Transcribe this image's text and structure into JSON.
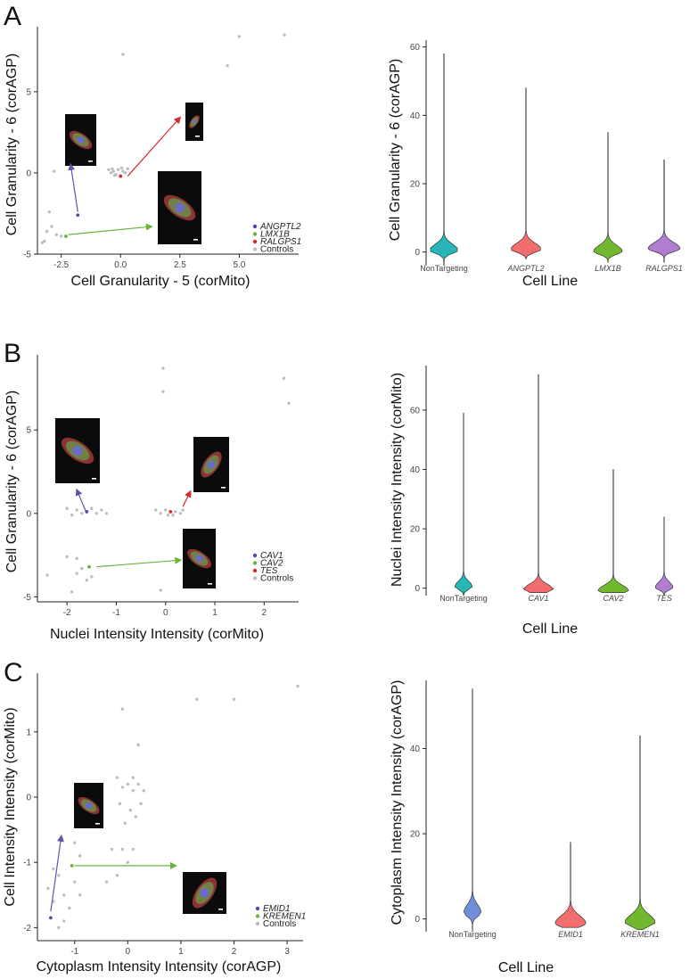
{
  "chart_data": [
    {
      "panel": "A",
      "type": "scatter",
      "xlabel": "Cell Granularity - 5 (corMito)",
      "ylabel": "Cell Granularity - 6 (corAGP)",
      "xlim": [
        -3.5,
        7.5
      ],
      "ylim": [
        -5,
        9
      ],
      "xticks": [
        -2.5,
        0,
        2.5,
        5
      ],
      "xtick_labels": [
        "-2.5",
        "0.0",
        "2.5",
        "5.0"
      ],
      "yticks": [
        -5,
        0,
        5
      ],
      "ytick_labels": [
        "-5",
        "0",
        "5"
      ],
      "legend": [
        {
          "label": "ANGPTL2",
          "color": "#4b4ba8"
        },
        {
          "label": "LMX1B",
          "color": "#6cb33e"
        },
        {
          "label": "RALGPS1",
          "color": "#d22b2b"
        },
        {
          "label": "Controls",
          "color": "#bdbdbd"
        }
      ],
      "points": [
        {
          "x": -1.8,
          "y": -2.6,
          "g": 0
        },
        {
          "x": -2.3,
          "y": -3.9,
          "g": 1
        },
        {
          "x": 0.0,
          "y": -0.2,
          "g": 2
        },
        {
          "x": 0.1,
          "y": 7.3,
          "g": 3
        },
        {
          "x": 6.9,
          "y": 8.5,
          "g": 3
        },
        {
          "x": 5.0,
          "y": 8.4,
          "g": 3
        },
        {
          "x": 4.5,
          "y": 6.6,
          "g": 3
        },
        {
          "x": -2.8,
          "y": 0.1,
          "g": 3
        },
        {
          "x": -3.1,
          "y": -3.6,
          "g": 3
        },
        {
          "x": -3.2,
          "y": -4.2,
          "g": 3
        },
        {
          "x": -3.3,
          "y": -4.3,
          "g": 3
        },
        {
          "x": -2.7,
          "y": -3.8,
          "g": 3
        },
        {
          "x": -2.5,
          "y": -3.9,
          "g": 3
        },
        {
          "x": -2.9,
          "y": -3.3,
          "g": 3
        },
        {
          "x": -3.0,
          "y": -2.4,
          "g": 3
        },
        {
          "x": -0.5,
          "y": 0.2,
          "g": 3
        },
        {
          "x": -0.4,
          "y": 0.0,
          "g": 3
        },
        {
          "x": -0.3,
          "y": 0.1,
          "g": 3
        },
        {
          "x": -0.2,
          "y": -0.1,
          "g": 3
        },
        {
          "x": -0.1,
          "y": 0.2,
          "g": 3
        },
        {
          "x": 0.1,
          "y": 0.1,
          "g": 3
        },
        {
          "x": 0.2,
          "y": 0.0,
          "g": 3
        },
        {
          "x": -0.35,
          "y": 0.25,
          "g": 3
        },
        {
          "x": 0.3,
          "y": 0.25,
          "g": 3
        },
        {
          "x": -0.25,
          "y": -0.15,
          "g": 3
        },
        {
          "x": 0.05,
          "y": 0.3,
          "g": 3
        }
      ],
      "arrows": [
        {
          "from": [
            -1.8,
            -2.4
          ],
          "to": [
            -2.1,
            0.5
          ],
          "color": "#5b57a8"
        },
        {
          "from": [
            0.3,
            -0.2
          ],
          "to": [
            2.5,
            3.4
          ],
          "color": "#d22b2b"
        },
        {
          "from": [
            -2.2,
            -3.8
          ],
          "to": [
            1.3,
            -3.3
          ],
          "color": "#6cb33e"
        }
      ]
    },
    {
      "panel": "A",
      "type": "violin",
      "xlabel": "Cell Line",
      "ylabel": "Cell Granularity - 6 (corAGP)",
      "ylim": [
        -4,
        62
      ],
      "yticks": [
        0,
        20,
        40,
        60
      ],
      "categories": [
        "NonTargeting",
        "ANGPTL2",
        "LMX1B",
        "RALGPS1"
      ],
      "italic": [
        false,
        true,
        true,
        true
      ],
      "colors": [
        "#27b5b5",
        "#f26d6d",
        "#72b82f",
        "#b07dd0"
      ],
      "min": [
        -4,
        -2,
        -3,
        -3
      ],
      "max": [
        58,
        48,
        35,
        27
      ],
      "center": [
        0.5,
        0.8,
        0.2,
        1.0
      ],
      "width_factor": [
        0.9,
        0.95,
        0.9,
        1.0
      ]
    },
    {
      "panel": "B",
      "type": "scatter",
      "xlabel": "Nuclei Intensity Intensity (corMito)",
      "ylabel": "Cell Granularity - 6 (corAGP)",
      "xlim": [
        -2.6,
        2.7
      ],
      "ylim": [
        -5.3,
        9.5
      ],
      "xticks": [
        -2,
        -1,
        0,
        1,
        2
      ],
      "xtick_labels": [
        "-2",
        "-1",
        "0",
        "1",
        "2"
      ],
      "yticks": [
        -5,
        0,
        5
      ],
      "ytick_labels": [
        "-5",
        "0",
        "5"
      ],
      "legend": [
        {
          "label": "CAV1",
          "color": "#4b4ba8"
        },
        {
          "label": "CAV2",
          "color": "#6cb33e"
        },
        {
          "label": "TES",
          "color": "#d22b2b"
        },
        {
          "label": "Controls",
          "color": "#bdbdbd"
        }
      ],
      "points": [
        {
          "x": -1.6,
          "y": 0.1,
          "g": 0
        },
        {
          "x": -1.55,
          "y": -3.2,
          "g": 1
        },
        {
          "x": 0.1,
          "y": 0.1,
          "g": 2
        },
        {
          "x": -0.05,
          "y": 8.7,
          "g": 3
        },
        {
          "x": -0.05,
          "y": 7.3,
          "g": 3
        },
        {
          "x": 2.4,
          "y": 8.1,
          "g": 3
        },
        {
          "x": 2.5,
          "y": 6.6,
          "g": 3
        },
        {
          "x": -2.0,
          "y": 0.3,
          "g": 3
        },
        {
          "x": -1.8,
          "y": 0.2,
          "g": 3
        },
        {
          "x": -1.7,
          "y": 0.0,
          "g": 3
        },
        {
          "x": -1.5,
          "y": 0.3,
          "g": 3
        },
        {
          "x": -1.4,
          "y": 0.0,
          "g": 3
        },
        {
          "x": -1.3,
          "y": 0.2,
          "g": 3
        },
        {
          "x": -1.2,
          "y": 0.0,
          "g": 3
        },
        {
          "x": -1.9,
          "y": -0.1,
          "g": 3
        },
        {
          "x": -0.2,
          "y": 0.2,
          "g": 3
        },
        {
          "x": -0.1,
          "y": 0.0,
          "g": 3
        },
        {
          "x": 0.0,
          "y": 0.2,
          "g": 3
        },
        {
          "x": 0.15,
          "y": -0.1,
          "g": 3
        },
        {
          "x": 0.2,
          "y": 0.1,
          "g": 3
        },
        {
          "x": 0.3,
          "y": 0.0,
          "g": 3
        },
        {
          "x": 0.35,
          "y": 0.2,
          "g": 3
        },
        {
          "x": 0.05,
          "y": -0.1,
          "g": 3
        },
        {
          "x": -2.4,
          "y": -3.7,
          "g": 3
        },
        {
          "x": -2.0,
          "y": -2.6,
          "g": 3
        },
        {
          "x": -1.8,
          "y": -2.7,
          "g": 3
        },
        {
          "x": -1.7,
          "y": -3.3,
          "g": 3
        },
        {
          "x": -1.5,
          "y": -3.8,
          "g": 3
        },
        {
          "x": -1.6,
          "y": -4.0,
          "g": 3
        },
        {
          "x": -1.9,
          "y": -4.7,
          "g": 3
        },
        {
          "x": -1.8,
          "y": -3.6,
          "g": 3
        },
        {
          "x": -0.1,
          "y": -4.6,
          "g": 3
        }
      ],
      "arrows": [
        {
          "from": [
            -1.6,
            0.0
          ],
          "to": [
            -1.8,
            1.4
          ],
          "color": "#5b57a8"
        },
        {
          "from": [
            0.35,
            0.4
          ],
          "to": [
            0.5,
            1.3
          ],
          "color": "#d22b2b"
        },
        {
          "from": [
            -1.4,
            -3.2
          ],
          "to": [
            0.3,
            -2.8
          ],
          "color": "#6cb33e"
        }
      ]
    },
    {
      "panel": "B",
      "type": "violin",
      "xlabel": "Cell Line",
      "ylabel": "Nuclei Intensity Intensity (corMito)",
      "ylim": [
        -2.5,
        75
      ],
      "yticks": [
        0,
        20,
        40,
        60
      ],
      "categories": [
        "NonTargeting",
        "CAV1",
        "CAV2",
        "TES"
      ],
      "italic": [
        false,
        true,
        true,
        true
      ],
      "colors": [
        "#27b5b5",
        "#f26d6d",
        "#72b82f",
        "#b07dd0"
      ],
      "min": [
        -2.5,
        -1.5,
        -1.5,
        -2.5
      ],
      "max": [
        59,
        72,
        40,
        24
      ],
      "center": [
        0.5,
        -0.5,
        -0.8,
        0.3
      ],
      "width_factor": [
        0.55,
        0.95,
        0.95,
        0.55
      ]
    },
    {
      "panel": "C",
      "type": "scatter",
      "xlabel": "Cytoplasm Intensity Intensity (corAGP)",
      "ylabel": "Cell Intensity Intensity (corMito)",
      "xlim": [
        -1.7,
        3.3
      ],
      "ylim": [
        -2.2,
        1.9
      ],
      "xticks": [
        -1,
        0,
        1,
        2,
        3
      ],
      "xtick_labels": [
        "-1",
        "0",
        "1",
        "2",
        "3"
      ],
      "yticks": [
        -2,
        -1,
        0,
        1
      ],
      "ytick_labels": [
        "-2",
        "-1",
        "0",
        "1"
      ],
      "legend": [
        {
          "label": "EMID1",
          "color": "#4b4ba8"
        },
        {
          "label": "KREMEN1",
          "color": "#6cb33e"
        },
        {
          "label": "Controls",
          "color": "#bdbdbd"
        }
      ],
      "points": [
        {
          "x": -1.45,
          "y": -1.85,
          "g": 0
        },
        {
          "x": -1.05,
          "y": -1.05,
          "g": 1
        },
        {
          "x": 3.2,
          "y": 1.7,
          "g": 2
        },
        {
          "x": 2.0,
          "y": 1.5,
          "g": 2
        },
        {
          "x": 1.3,
          "y": 1.5,
          "g": 2
        },
        {
          "x": -0.1,
          "y": 1.35,
          "g": 2
        },
        {
          "x": 0.2,
          "y": 0.8,
          "g": 2
        },
        {
          "x": -0.2,
          "y": 0.3,
          "g": 2
        },
        {
          "x": -0.1,
          "y": 0.15,
          "g": 2
        },
        {
          "x": 0.0,
          "y": 0.2,
          "g": 2
        },
        {
          "x": 0.1,
          "y": 0.1,
          "g": 2
        },
        {
          "x": 0.2,
          "y": 0.2,
          "g": 2
        },
        {
          "x": 0.3,
          "y": 0.1,
          "g": 2
        },
        {
          "x": -0.15,
          "y": -0.1,
          "g": 2
        },
        {
          "x": 0.05,
          "y": -0.2,
          "g": 2
        },
        {
          "x": 0.15,
          "y": -0.3,
          "g": 2
        },
        {
          "x": 0.25,
          "y": -0.1,
          "g": 2
        },
        {
          "x": -0.05,
          "y": -0.4,
          "g": 2
        },
        {
          "x": 0.1,
          "y": 0.3,
          "g": 2
        },
        {
          "x": -0.3,
          "y": -0.8,
          "g": 2
        },
        {
          "x": -0.1,
          "y": -0.8,
          "g": 2
        },
        {
          "x": 0.0,
          "y": -1.0,
          "g": 2
        },
        {
          "x": 0.1,
          "y": -0.8,
          "g": 2
        },
        {
          "x": -0.4,
          "y": -1.3,
          "g": 2
        },
        {
          "x": -0.2,
          "y": -1.2,
          "g": 2
        },
        {
          "x": -1.5,
          "y": -1.4,
          "g": 2
        },
        {
          "x": -1.4,
          "y": -1.6,
          "g": 2
        },
        {
          "x": -1.3,
          "y": -1.2,
          "g": 2
        },
        {
          "x": -1.2,
          "y": -1.5,
          "g": 2
        },
        {
          "x": -1.1,
          "y": -1.7,
          "g": 2
        },
        {
          "x": -1.0,
          "y": -1.3,
          "g": 2
        },
        {
          "x": -0.9,
          "y": -1.5,
          "g": 2
        },
        {
          "x": -1.3,
          "y": -2.0,
          "g": 2
        },
        {
          "x": -1.2,
          "y": -1.9,
          "g": 2
        },
        {
          "x": -1.4,
          "y": -1.1,
          "g": 2
        },
        {
          "x": -1.0,
          "y": -0.7,
          "g": 2
        },
        {
          "x": -0.9,
          "y": -0.9,
          "g": 2
        }
      ],
      "arrows": [
        {
          "from": [
            -1.45,
            -1.75
          ],
          "to": [
            -1.25,
            -0.6
          ],
          "color": "#5b57a8"
        },
        {
          "from": [
            -1.0,
            -1.05
          ],
          "to": [
            0.9,
            -1.05
          ],
          "color": "#6cb33e"
        }
      ]
    },
    {
      "panel": "C",
      "type": "violin",
      "xlabel": "Cell Line",
      "ylabel": "Cytoplasm Intensity Intensity (corAGP)",
      "ylim": [
        -3,
        56
      ],
      "yticks": [
        0,
        20,
        40
      ],
      "categories": [
        "NonTargeting",
        "EMID1",
        "KREMEN1"
      ],
      "italic": [
        false,
        true,
        true
      ],
      "colors": [
        "#6f8fd8",
        "#f26d6d",
        "#72b82f"
      ],
      "min": [
        -3,
        -2,
        -2.5
      ],
      "max": [
        54,
        18,
        43
      ],
      "center": [
        1.5,
        -1.0,
        -0.8
      ],
      "width_factor": [
        0.55,
        0.95,
        0.95
      ]
    }
  ],
  "panels": {
    "a": {
      "letter": "A"
    },
    "b": {
      "letter": "B"
    },
    "c": {
      "letter": "C"
    }
  }
}
